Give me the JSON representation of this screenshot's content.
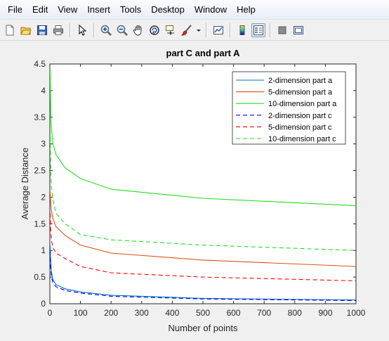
{
  "menu": [
    "File",
    "Edit",
    "View",
    "Insert",
    "Tools",
    "Desktop",
    "Window",
    "Help"
  ],
  "toolbar_icons": [
    "new-file-icon",
    "open-file-icon",
    "save-icon",
    "print-icon",
    "pointer-icon",
    "zoom-in-icon",
    "zoom-out-icon",
    "pan-icon",
    "rotate-3d-icon",
    "data-cursor-icon",
    "brush-icon",
    "brush-dropdown-icon",
    "link-plot-icon",
    "colorbar-icon",
    "legend-icon",
    "hide-plot-tools-icon",
    "show-plot-tools-icon"
  ],
  "chart_data": {
    "type": "line",
    "title": "part C and part A",
    "xlabel": "Number of points",
    "ylabel": "Average Distance",
    "xlim": [
      0,
      1000
    ],
    "ylim": [
      0,
      4.5
    ],
    "xticks": [
      "0",
      "100",
      "200",
      "300",
      "400",
      "500",
      "600",
      "700",
      "800",
      "900",
      "1000"
    ],
    "yticks": [
      "0",
      "0.5",
      "1",
      "1.5",
      "2",
      "2.5",
      "3",
      "3.5",
      "4",
      "4.5"
    ],
    "grid": false,
    "legend_position": "top-right",
    "series": [
      {
        "name": "2-dimension part a",
        "color": "#0072bd",
        "style": "solid",
        "x": [
          1,
          2,
          5,
          10,
          20,
          50,
          100,
          200,
          500,
          1000
        ],
        "y": [
          1.1,
          0.85,
          0.6,
          0.45,
          0.36,
          0.28,
          0.22,
          0.16,
          0.1,
          0.07
        ]
      },
      {
        "name": "5-dimension part a",
        "color": "#d95319",
        "style": "solid",
        "x": [
          1,
          2,
          5,
          10,
          20,
          50,
          100,
          200,
          500,
          1000
        ],
        "y": [
          2.1,
          1.95,
          1.75,
          1.6,
          1.45,
          1.28,
          1.1,
          0.95,
          0.82,
          0.7
        ]
      },
      {
        "name": "10-dimension part a",
        "color": "#22dd22",
        "style": "solid",
        "x": [
          1,
          2,
          5,
          10,
          20,
          50,
          100,
          200,
          500,
          1000
        ],
        "y": [
          4.4,
          3.8,
          3.3,
          3.0,
          2.8,
          2.55,
          2.35,
          2.15,
          1.98,
          1.84
        ]
      },
      {
        "name": "2-dimension part c",
        "color": "#0000ff",
        "style": "dashed",
        "x": [
          1,
          2,
          5,
          10,
          20,
          50,
          100,
          200,
          500,
          1000
        ],
        "y": [
          1.0,
          0.75,
          0.5,
          0.4,
          0.32,
          0.25,
          0.2,
          0.14,
          0.09,
          0.06
        ]
      },
      {
        "name": "5-dimension part c",
        "color": "#ff0000",
        "style": "dashed",
        "x": [
          1,
          2,
          5,
          10,
          20,
          50,
          100,
          200,
          500,
          1000
        ],
        "y": [
          1.7,
          1.45,
          1.2,
          1.05,
          0.95,
          0.85,
          0.7,
          0.58,
          0.5,
          0.43
        ]
      },
      {
        "name": "10-dimension part c",
        "color": "#22dd22",
        "style": "dashed",
        "x": [
          1,
          2,
          5,
          10,
          20,
          50,
          100,
          200,
          500,
          1000
        ],
        "y": [
          3.4,
          2.7,
          2.2,
          1.95,
          1.7,
          1.5,
          1.3,
          1.2,
          1.1,
          1.0
        ]
      }
    ]
  }
}
